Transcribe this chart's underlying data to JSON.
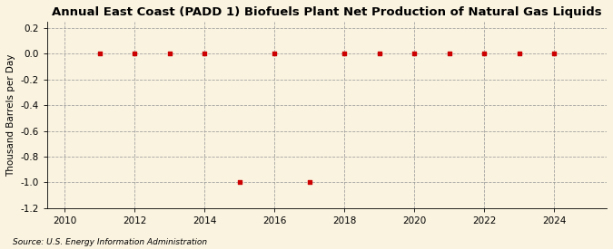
{
  "title": "Annual East Coast (PADD 1) Biofuels Plant Net Production of Natural Gas Liquids",
  "ylabel": "Thousand Barrels per Day",
  "source": "Source: U.S. Energy Information Administration",
  "background_color": "#faf3e0",
  "years": [
    2011,
    2012,
    2013,
    2014,
    2015,
    2016,
    2017,
    2018,
    2019,
    2020,
    2021,
    2022,
    2023,
    2024
  ],
  "values": [
    0.0,
    0.0,
    0.0,
    0.0,
    -1.0,
    0.0,
    -1.0,
    0.0,
    0.0,
    0.0,
    0.0,
    0.0,
    0.0,
    0.0
  ],
  "marker_color": "#cc0000",
  "marker_style": "s",
  "marker_size": 3.5,
  "xlim": [
    2009.5,
    2025.5
  ],
  "ylim": [
    -1.2,
    0.25
  ],
  "yticks": [
    0.2,
    0.0,
    -0.2,
    -0.4,
    -0.6,
    -0.8,
    -1.0,
    -1.2
  ],
  "xticks": [
    2010,
    2012,
    2014,
    2016,
    2018,
    2020,
    2022,
    2024
  ],
  "grid_color": "#999999",
  "title_fontsize": 9.5,
  "label_fontsize": 7.5,
  "tick_fontsize": 7.5,
  "source_fontsize": 6.5
}
